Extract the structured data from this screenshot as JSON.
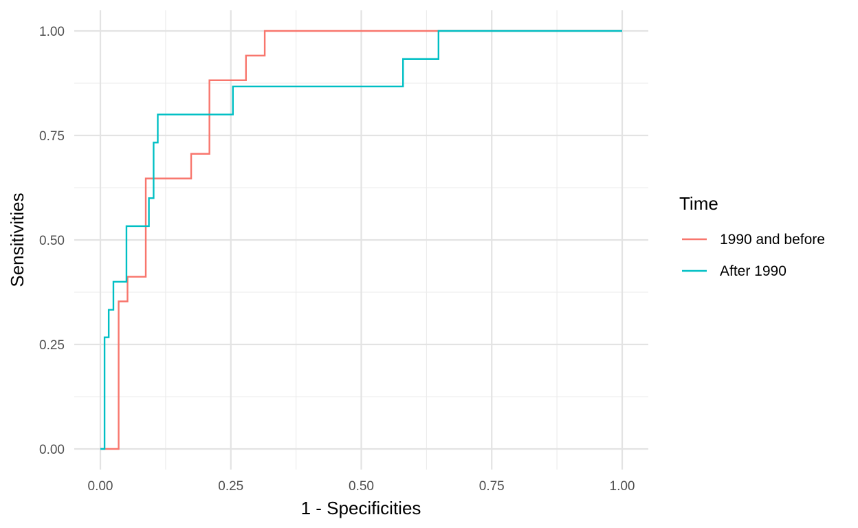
{
  "chart_data": {
    "type": "line",
    "xlabel": "1 - Specificities",
    "ylabel": "Sensitivities",
    "xlim": [
      0,
      1
    ],
    "ylim": [
      0,
      1
    ],
    "x_ticks": [
      "0.00",
      "0.25",
      "0.50",
      "0.75",
      "1.00"
    ],
    "y_ticks": [
      "0.00",
      "0.25",
      "0.50",
      "0.75",
      "1.00"
    ],
    "grid": true,
    "legend": {
      "title": "Time",
      "position": "right"
    },
    "series": [
      {
        "name": "1990 and before",
        "color": "#F8766D",
        "step": true,
        "points": [
          [
            0.0,
            0.0
          ],
          [
            0.035,
            0.0
          ],
          [
            0.035,
            0.353
          ],
          [
            0.052,
            0.353
          ],
          [
            0.052,
            0.412
          ],
          [
            0.087,
            0.412
          ],
          [
            0.087,
            0.647
          ],
          [
            0.174,
            0.647
          ],
          [
            0.174,
            0.706
          ],
          [
            0.209,
            0.706
          ],
          [
            0.209,
            0.882
          ],
          [
            0.279,
            0.882
          ],
          [
            0.279,
            0.941
          ],
          [
            0.315,
            0.941
          ],
          [
            0.315,
            1.0
          ],
          [
            1.0,
            1.0
          ]
        ]
      },
      {
        "name": "After 1990",
        "color": "#00BFC4",
        "step": true,
        "points": [
          [
            0.0,
            0.0
          ],
          [
            0.008,
            0.0
          ],
          [
            0.008,
            0.267
          ],
          [
            0.016,
            0.267
          ],
          [
            0.016,
            0.333
          ],
          [
            0.025,
            0.333
          ],
          [
            0.025,
            0.4
          ],
          [
            0.05,
            0.4
          ],
          [
            0.05,
            0.533
          ],
          [
            0.093,
            0.533
          ],
          [
            0.093,
            0.6
          ],
          [
            0.102,
            0.6
          ],
          [
            0.102,
            0.733
          ],
          [
            0.11,
            0.733
          ],
          [
            0.11,
            0.8
          ],
          [
            0.254,
            0.8
          ],
          [
            0.254,
            0.867
          ],
          [
            0.58,
            0.867
          ],
          [
            0.58,
            0.933
          ],
          [
            0.648,
            0.933
          ],
          [
            0.648,
            1.0
          ],
          [
            1.0,
            1.0
          ]
        ]
      }
    ]
  }
}
